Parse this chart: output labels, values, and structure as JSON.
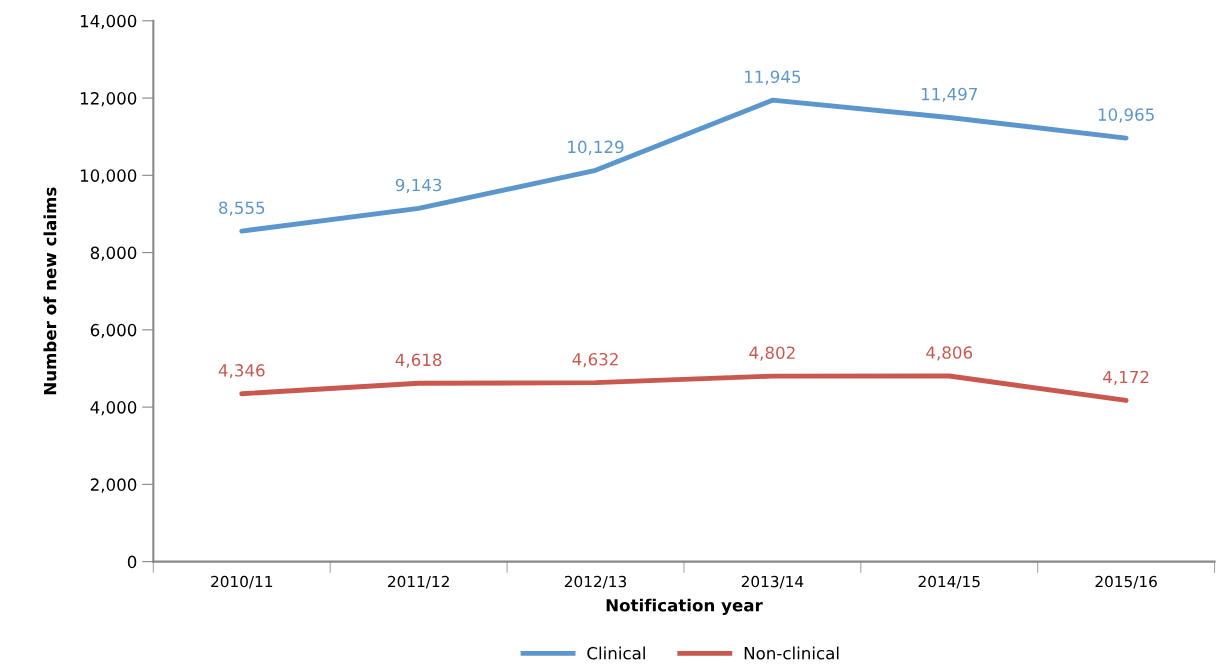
{
  "chart_data": {
    "type": "line",
    "xlabel": "Notification year",
    "ylabel": "Number of new claims",
    "categories": [
      "2010/11",
      "2011/12",
      "2012/13",
      "2013/14",
      "2014/15",
      "2015/16"
    ],
    "series": [
      {
        "name": "Clinical",
        "color": "#5b96cc",
        "values": [
          8555,
          9143,
          10129,
          11945,
          11497,
          10965
        ],
        "value_labels": [
          "8,555",
          "9,143",
          "10,129",
          "11,945",
          "11,497",
          "10,965"
        ]
      },
      {
        "name": "Non-clinical",
        "color": "#c9584f",
        "values": [
          4346,
          4618,
          4632,
          4802,
          4806,
          4172
        ],
        "value_labels": [
          "4,346",
          "4,618",
          "4,632",
          "4,802",
          "4,806",
          "4,172"
        ]
      }
    ],
    "ylim": [
      0,
      14000
    ],
    "yticks": [
      {
        "value": 0,
        "label": "0"
      },
      {
        "value": 2000,
        "label": "2,000"
      },
      {
        "value": 4000,
        "label": "4,000"
      },
      {
        "value": 6000,
        "label": "6,000"
      },
      {
        "value": 8000,
        "label": "8,000"
      },
      {
        "value": 10000,
        "label": "10,000"
      },
      {
        "value": 12000,
        "label": "12,000"
      },
      {
        "value": 14000,
        "label": "14,000"
      }
    ],
    "grid": false,
    "legend": "bottom",
    "marker": "none",
    "line_style": "solid"
  }
}
